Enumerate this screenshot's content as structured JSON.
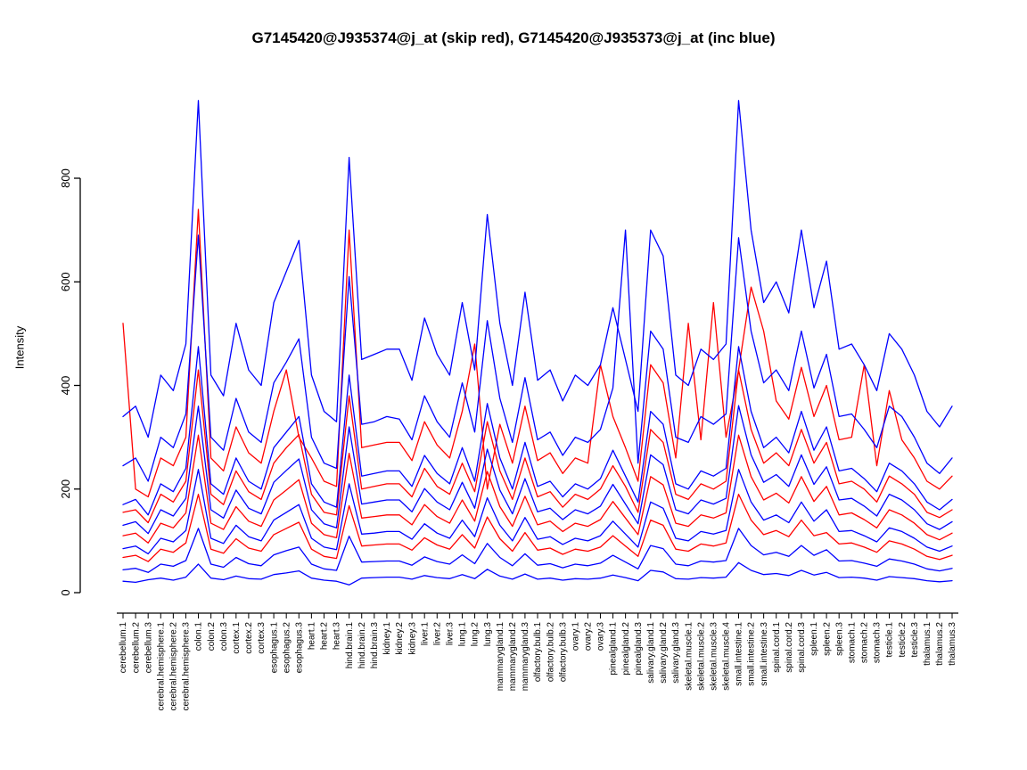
{
  "chart_data": {
    "type": "line",
    "title": "G7145420@J935374@j_at (skip red), G7145420@J935373@j_at (inc blue)",
    "ylabel": "Intensity",
    "xlabel": "",
    "ylim": [
      0,
      960
    ],
    "yticks": [
      0,
      200,
      400,
      600,
      800
    ],
    "grid": false,
    "legend_position": "none",
    "series_colors": {
      "skip": "#ff0000",
      "inc": "#0000ff"
    },
    "categories": [
      "cerebellum.1",
      "cerebellum.2",
      "cerebellum.3",
      "cerebral.hemisphere.1",
      "cerebral.hemisphere.2",
      "cerebral.hemisphere.3",
      "colon.1",
      "colon.2",
      "colon.3",
      "cortex.1",
      "cortex.2",
      "cortex.3",
      "esophagus.1",
      "esophagus.2",
      "esophagus.3",
      "heart.1",
      "heart.2",
      "heart.3",
      "hind.brain.1",
      "hind.brain.2",
      "hind.brain.3",
      "kidney.1",
      "kidney.2",
      "kidney.3",
      "liver.1",
      "liver.2",
      "liver.3",
      "lung.1",
      "lung.2",
      "lung.3",
      "mammarygland.1",
      "mammarygland.2",
      "mammarygland.3",
      "olfactory.bulb.1",
      "olfactory.bulb.2",
      "olfactory.bulb.3",
      "ovary.1",
      "ovary.2",
      "ovary.3",
      "pinealgland.1",
      "pinealgland.2",
      "pinealgland.3",
      "salivary.gland.1",
      "salivary.gland.2",
      "salivary.gland.3",
      "skeletal.muscle.1",
      "skeletal.muscle.2",
      "skeletal.muscle.3",
      "skeletal.muscle.4",
      "small.intestine.1",
      "small.intestine.2",
      "small.intestine.3",
      "spinal.cord.1",
      "spinal.cord.2",
      "spinal.cord.3",
      "spleen.1",
      "spleen.2",
      "spleen.3",
      "stomach.1",
      "stomach.2",
      "stomach.3",
      "testicle.1",
      "testicle.2",
      "testicle.3",
      "thalamus.1",
      "thalamus.2",
      "thalamus.3"
    ],
    "series": [
      {
        "name": "skip-red-1",
        "group": "skip",
        "color": "#ff0000",
        "values": [
          520,
          200,
          185,
          260,
          245,
          300,
          740,
          260,
          235,
          320,
          270,
          250,
          350,
          430,
          300,
          260,
          215,
          205,
          700,
          280,
          285,
          290,
          290,
          255,
          330,
          285,
          260,
          350,
          480,
          200,
          325,
          250,
          360,
          255,
          270,
          230,
          260,
          250,
          440,
          340,
          280,
          215,
          440,
          405,
          260,
          520,
          295,
          560,
          300,
          430,
          590,
          505,
          370,
          335,
          435,
          340,
          400,
          295,
          300,
          440,
          245,
          390,
          295,
          260,
          215,
          200,
          225
        ]
      },
      {
        "name": "skip-red-2",
        "group": "skip",
        "color": "#ff0000",
        "values": [
          155,
          160,
          135,
          190,
          175,
          215,
          430,
          190,
          170,
          235,
          195,
          180,
          250,
          280,
          305,
          190,
          155,
          150,
          380,
          200,
          205,
          210,
          210,
          185,
          240,
          205,
          190,
          250,
          195,
          330,
          235,
          180,
          260,
          185,
          195,
          165,
          190,
          180,
          200,
          245,
          205,
          155,
          315,
          290,
          190,
          180,
          210,
          200,
          215,
          430,
          315,
          250,
          270,
          245,
          315,
          250,
          290,
          210,
          215,
          200,
          175,
          225,
          210,
          190,
          155,
          145,
          160
        ]
      },
      {
        "name": "skip-red-3",
        "group": "skip",
        "color": "#ff0000",
        "values": [
          110,
          115,
          96,
          134,
          125,
          154,
          304,
          134,
          122,
          166,
          138,
          128,
          179,
          198,
          218,
          134,
          112,
          106,
          269,
          144,
          147,
          150,
          150,
          131,
          170,
          147,
          134,
          179,
          138,
          234,
          166,
          128,
          186,
          131,
          138,
          118,
          134,
          128,
          141,
          176,
          144,
          112,
          224,
          208,
          134,
          128,
          150,
          144,
          154,
          304,
          224,
          179,
          192,
          173,
          224,
          176,
          205,
          150,
          154,
          141,
          125,
          160,
          150,
          134,
          112,
          102,
          115
        ]
      },
      {
        "name": "skip-red-4",
        "group": "skip",
        "color": "#ff0000",
        "values": [
          68,
          72,
          60,
          84,
          78,
          96,
          190,
          84,
          76,
          104,
          86,
          80,
          112,
          124,
          136,
          84,
          70,
          66,
          168,
          90,
          92,
          94,
          94,
          82,
          106,
          92,
          84,
          112,
          86,
          146,
          104,
          80,
          116,
          82,
          86,
          74,
          84,
          80,
          88,
          110,
          90,
          70,
          140,
          130,
          84,
          80,
          94,
          90,
          96,
          190,
          140,
          112,
          120,
          108,
          140,
          110,
          116,
          94,
          96,
          88,
          78,
          100,
          94,
          84,
          70,
          64,
          72
        ]
      },
      {
        "name": "inc-blue-1",
        "group": "inc",
        "color": "#0000ff",
        "values": [
          340,
          360,
          300,
          420,
          390,
          480,
          950,
          420,
          380,
          520,
          430,
          400,
          560,
          620,
          680,
          420,
          350,
          330,
          840,
          450,
          460,
          470,
          470,
          410,
          530,
          460,
          420,
          560,
          430,
          730,
          520,
          400,
          580,
          410,
          430,
          370,
          420,
          400,
          440,
          550,
          450,
          350,
          700,
          650,
          420,
          400,
          470,
          450,
          480,
          950,
          700,
          560,
          600,
          540,
          700,
          550,
          640,
          470,
          480,
          440,
          390,
          500,
          470,
          420,
          350,
          320,
          360
        ]
      },
      {
        "name": "inc-blue-2",
        "group": "inc",
        "color": "#0000ff",
        "values": [
          245,
          260,
          215,
          300,
          280,
          345,
          690,
          300,
          275,
          375,
          310,
          290,
          405,
          445,
          490,
          300,
          250,
          240,
          610,
          325,
          330,
          340,
          335,
          295,
          380,
          330,
          300,
          405,
          310,
          525,
          375,
          290,
          415,
          295,
          310,
          265,
          300,
          290,
          315,
          395,
          700,
          250,
          505,
          470,
          300,
          290,
          340,
          325,
          345,
          685,
          505,
          405,
          430,
          390,
          505,
          395,
          460,
          340,
          345,
          315,
          280,
          360,
          340,
          300,
          250,
          230,
          260
        ]
      },
      {
        "name": "inc-blue-3",
        "group": "inc",
        "color": "#0000ff",
        "values": [
          170,
          180,
          150,
          210,
          195,
          240,
          475,
          210,
          190,
          260,
          215,
          200,
          280,
          310,
          340,
          210,
          175,
          165,
          420,
          225,
          230,
          235,
          235,
          205,
          265,
          230,
          210,
          280,
          215,
          365,
          260,
          200,
          290,
          205,
          215,
          185,
          210,
          200,
          220,
          275,
          225,
          175,
          350,
          325,
          210,
          200,
          235,
          225,
          240,
          475,
          350,
          280,
          300,
          270,
          350,
          275,
          320,
          235,
          240,
          220,
          195,
          250,
          235,
          210,
          175,
          160,
          180
        ]
      },
      {
        "name": "inc-blue-4",
        "group": "inc",
        "color": "#0000ff",
        "values": [
          130,
          137,
          114,
          160,
          148,
          182,
          360,
          160,
          144,
          198,
          163,
          152,
          213,
          236,
          258,
          160,
          133,
          125,
          320,
          171,
          175,
          179,
          179,
          156,
          201,
          175,
          160,
          213,
          163,
          277,
          198,
          152,
          220,
          156,
          163,
          141,
          160,
          152,
          167,
          209,
          171,
          133,
          266,
          247,
          160,
          152,
          179,
          171,
          182,
          361,
          266,
          213,
          228,
          205,
          266,
          209,
          243,
          179,
          182,
          167,
          148,
          190,
          179,
          160,
          133,
          122,
          137
        ]
      },
      {
        "name": "inc-blue-5",
        "group": "inc",
        "color": "#0000ff",
        "values": [
          85,
          90,
          75,
          105,
          98,
          120,
          238,
          105,
          95,
          130,
          108,
          100,
          140,
          155,
          170,
          105,
          88,
          83,
          210,
          113,
          115,
          118,
          118,
          103,
          133,
          115,
          105,
          140,
          108,
          183,
          130,
          100,
          145,
          103,
          108,
          93,
          105,
          100,
          110,
          138,
          113,
          88,
          175,
          163,
          105,
          100,
          118,
          113,
          120,
          238,
          175,
          140,
          150,
          135,
          175,
          138,
          160,
          118,
          120,
          110,
          98,
          125,
          118,
          105,
          88,
          80,
          90
        ]
      },
      {
        "name": "inc-blue-6",
        "group": "inc",
        "color": "#0000ff",
        "values": [
          44,
          47,
          39,
          55,
          51,
          62,
          124,
          55,
          49,
          68,
          56,
          52,
          73,
          81,
          88,
          55,
          46,
          43,
          109,
          59,
          60,
          61,
          61,
          53,
          69,
          60,
          55,
          73,
          56,
          95,
          68,
          52,
          75,
          53,
          56,
          48,
          55,
          52,
          57,
          72,
          59,
          46,
          91,
          85,
          55,
          52,
          61,
          59,
          62,
          124,
          91,
          73,
          78,
          70,
          91,
          72,
          83,
          61,
          62,
          57,
          51,
          65,
          61,
          55,
          46,
          42,
          47
        ]
      },
      {
        "name": "inc-blue-7",
        "group": "inc",
        "color": "#0000ff",
        "values": [
          22,
          20,
          25,
          28,
          24,
          30,
          55,
          28,
          25,
          32,
          27,
          26,
          35,
          38,
          42,
          28,
          24,
          22,
          15,
          28,
          29,
          30,
          30,
          26,
          33,
          29,
          27,
          35,
          27,
          45,
          32,
          26,
          36,
          26,
          28,
          24,
          27,
          26,
          28,
          34,
          29,
          23,
          43,
          40,
          27,
          26,
          29,
          28,
          30,
          58,
          43,
          35,
          37,
          33,
          43,
          34,
          39,
          29,
          30,
          28,
          24,
          31,
          29,
          27,
          23,
          21,
          23
        ]
      }
    ]
  }
}
